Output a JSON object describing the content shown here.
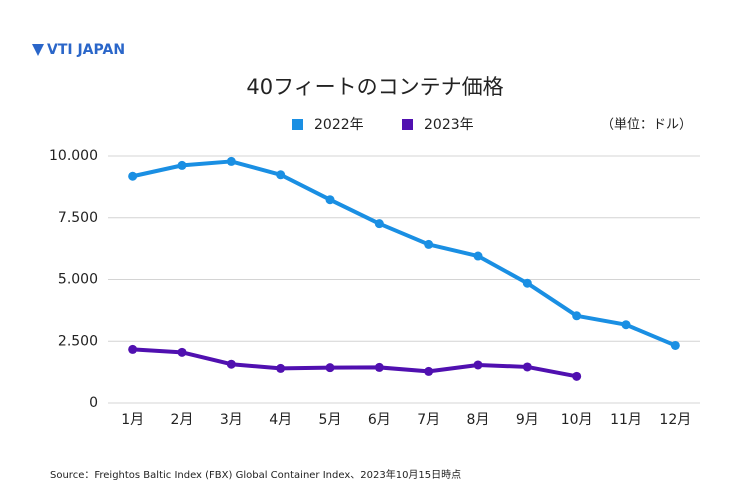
{
  "logo": "VTI JAPAN",
  "chart_data": {
    "type": "line",
    "title": "40フィートのコンテナ価格",
    "unit_label": "（単位：ドル）",
    "source": "Source：Freightos Baltic Index (FBX) Global Container Index、2023年10月15日時点",
    "categories": [
      "1月",
      "2月",
      "3月",
      "4月",
      "5月",
      "6月",
      "7月",
      "8月",
      "9月",
      "10月",
      "11月",
      "12月"
    ],
    "series": [
      {
        "name": "2022年",
        "color": "#1a8fe3",
        "values": [
          9180,
          9620,
          9780,
          9240,
          8230,
          7260,
          6420,
          5950,
          4850,
          3530,
          3170,
          2330
        ]
      },
      {
        "name": "2023年",
        "color": "#5010b0",
        "values": [
          2170,
          2050,
          1570,
          1400,
          1430,
          1440,
          1280,
          1540,
          1460,
          1080,
          null,
          null
        ]
      }
    ],
    "ylim": [
      0,
      10000
    ],
    "yticks": [
      0,
      {
        "value": 2500,
        "label": "2.500"
      },
      {
        "value": 5000,
        "label": "5.000"
      },
      {
        "value": 7500,
        "label": "7.500"
      },
      {
        "value": 10000,
        "label": "10.000"
      }
    ],
    "grid": true,
    "legend": "top"
  }
}
